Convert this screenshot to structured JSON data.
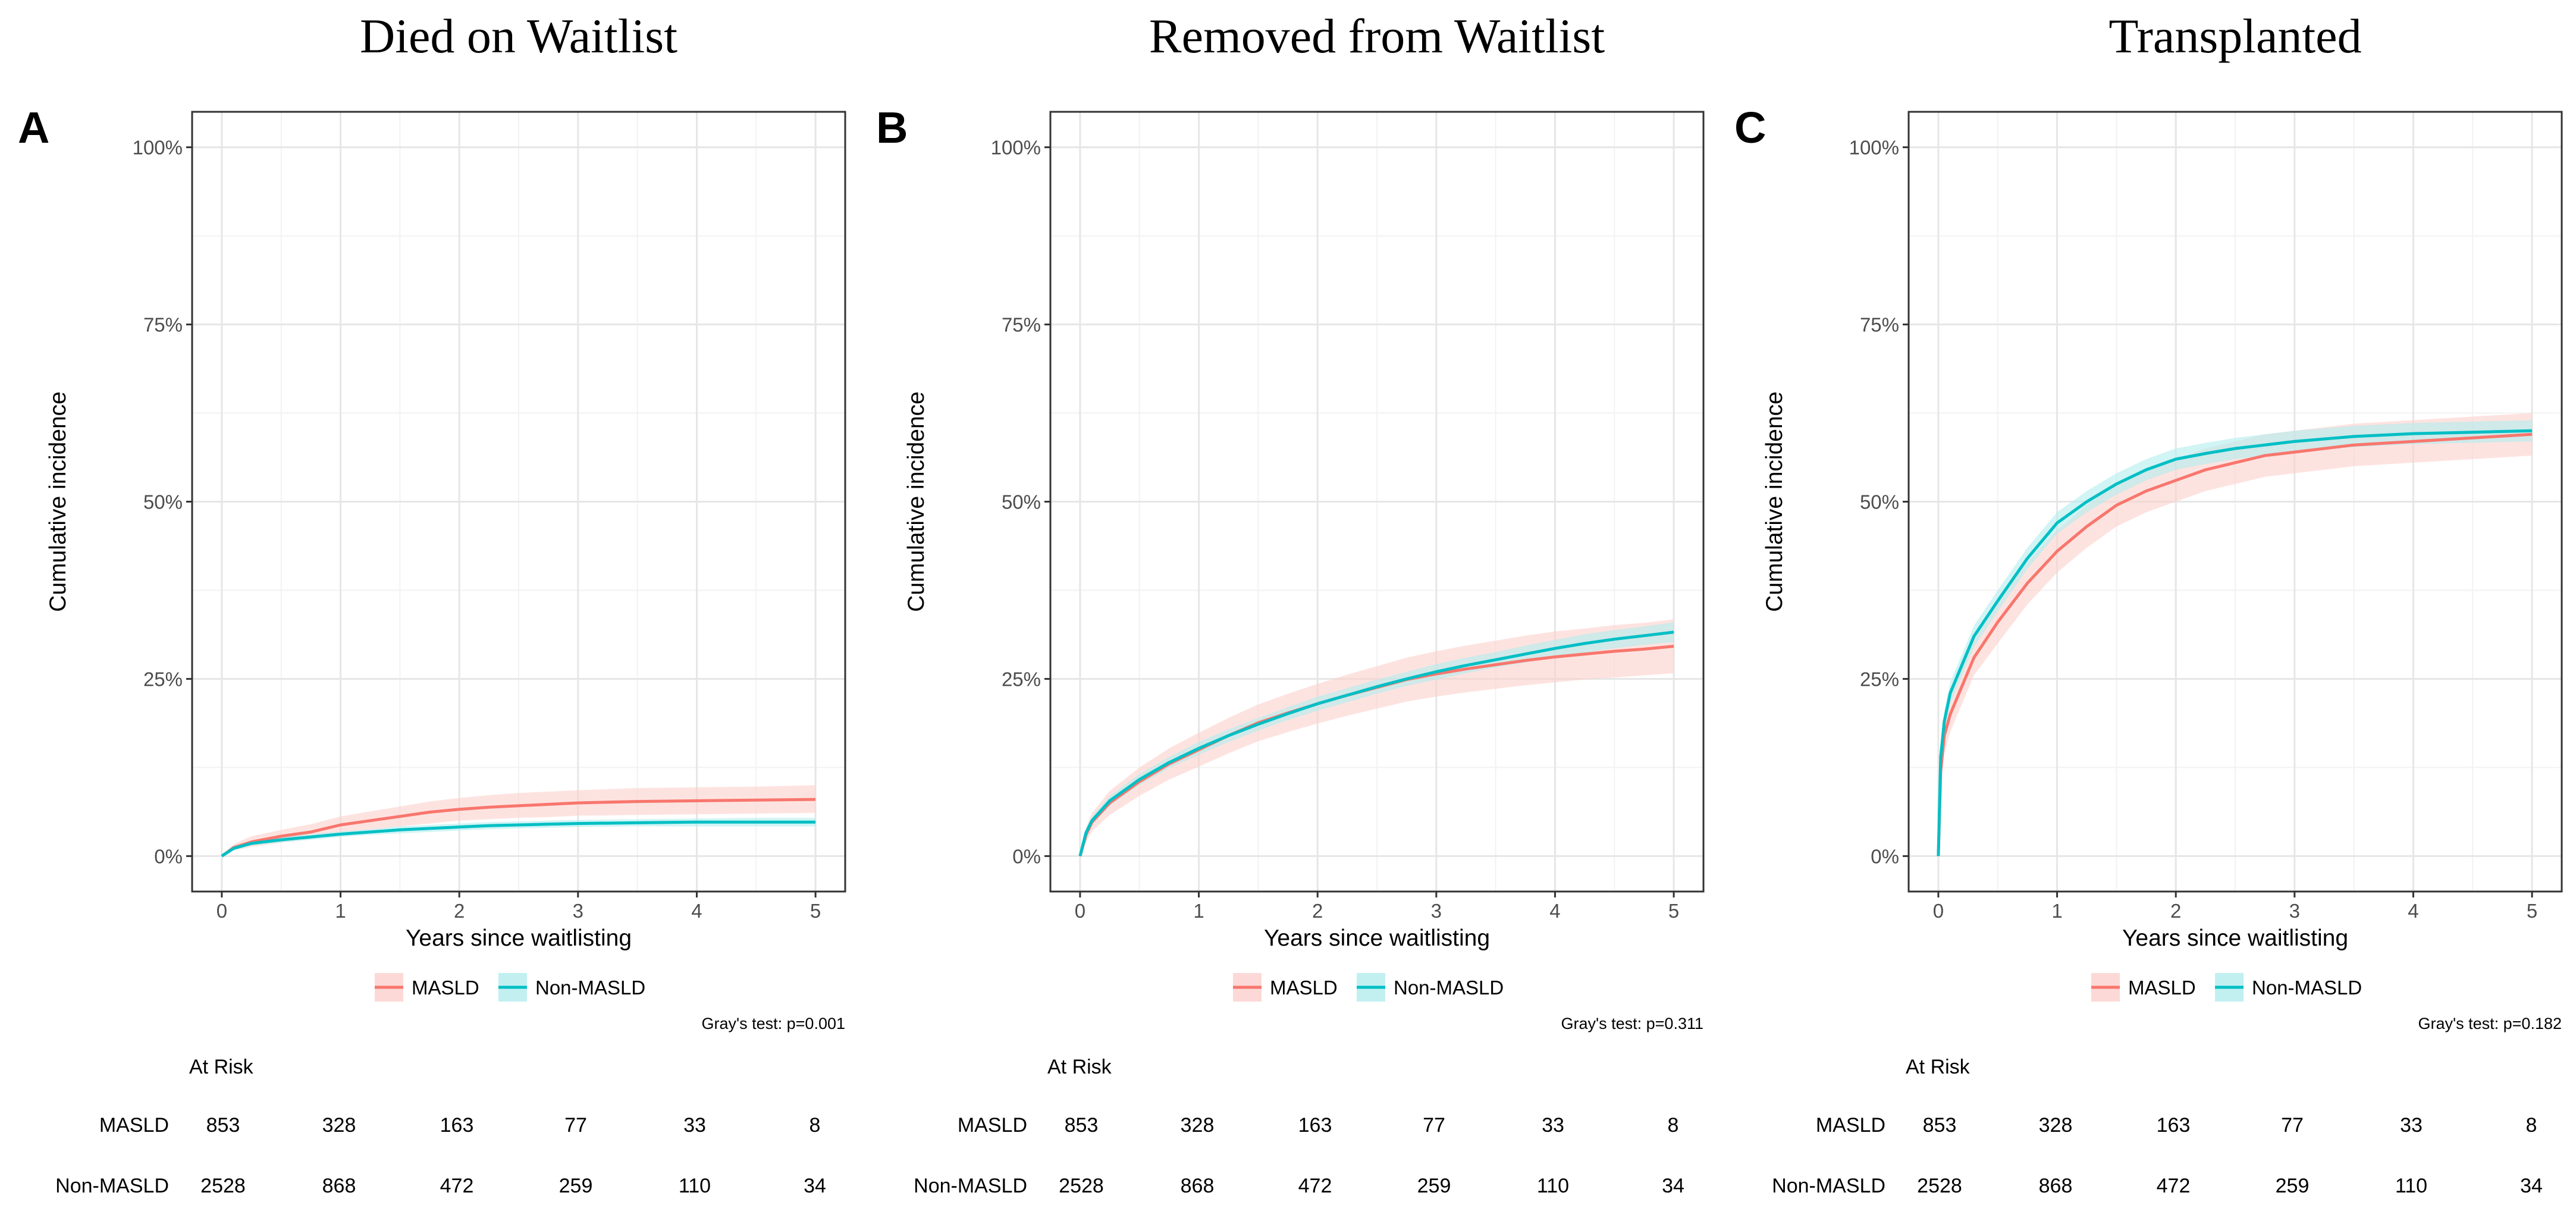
{
  "chart_data": [
    {
      "type": "line",
      "letter": "A",
      "title": "Died on Waitlist",
      "xlabel": "Years since waitlisting",
      "ylabel": "Cumulative incidence",
      "xlim": [
        0,
        5
      ],
      "ylim": [
        0,
        100
      ],
      "x_ticks": [
        0,
        1,
        2,
        3,
        4,
        5
      ],
      "y_ticks": [
        "0%",
        "25%",
        "50%",
        "75%",
        "100%"
      ],
      "grid": true,
      "legend": "bottom",
      "series": [
        {
          "name": "MASLD",
          "color": "#F8766D",
          "band_color": "#FBD0CC",
          "x": [
            0,
            0.1,
            0.25,
            0.5,
            0.75,
            1,
            1.25,
            1.5,
            1.75,
            2,
            2.25,
            2.5,
            2.75,
            3,
            3.5,
            4,
            4.5,
            5
          ],
          "y": [
            0,
            1.2,
            2.0,
            2.8,
            3.4,
            4.4,
            5.0,
            5.6,
            6.2,
            6.6,
            6.9,
            7.1,
            7.3,
            7.5,
            7.7,
            7.8,
            7.9,
            8.0
          ],
          "ci_lower": [
            0,
            0.8,
            1.3,
            1.9,
            2.4,
            3.2,
            3.7,
            4.2,
            4.6,
            5.0,
            5.2,
            5.4,
            5.5,
            5.7,
            5.8,
            5.9,
            6.0,
            6.1
          ],
          "ci_upper": [
            0,
            1.7,
            2.8,
            3.7,
            4.5,
            5.6,
            6.3,
            7.0,
            7.7,
            8.2,
            8.6,
            8.9,
            9.1,
            9.3,
            9.6,
            9.7,
            9.8,
            10.0
          ]
        },
        {
          "name": "Non-MASLD",
          "color": "#00BFC4",
          "band_color": "#B3ECEE",
          "x": [
            0,
            0.1,
            0.25,
            0.5,
            0.75,
            1,
            1.25,
            1.5,
            1.75,
            2,
            2.25,
            2.5,
            2.75,
            3,
            3.5,
            4,
            4.5,
            5
          ],
          "y": [
            0,
            1.1,
            1.8,
            2.3,
            2.7,
            3.1,
            3.4,
            3.7,
            3.9,
            4.1,
            4.3,
            4.4,
            4.5,
            4.6,
            4.7,
            4.8,
            4.8,
            4.8
          ],
          "ci_lower": [
            0,
            0.8,
            1.5,
            1.9,
            2.3,
            2.7,
            3.0,
            3.2,
            3.4,
            3.6,
            3.8,
            3.9,
            4.0,
            4.1,
            4.2,
            4.2,
            4.2,
            4.2
          ],
          "ci_upper": [
            0,
            1.4,
            2.1,
            2.7,
            3.1,
            3.5,
            3.8,
            4.2,
            4.4,
            4.6,
            4.8,
            4.9,
            5.0,
            5.1,
            5.2,
            5.3,
            5.4,
            5.4
          ]
        }
      ],
      "test": "Gray's test: p=0.001",
      "risk_title": "At Risk",
      "risk_rows": [
        {
          "label": "MASLD",
          "values": [
            "853",
            "328",
            "163",
            "77",
            "33",
            "8"
          ]
        },
        {
          "label": "Non-MASLD",
          "values": [
            "2528",
            "868",
            "472",
            "259",
            "110",
            "34"
          ]
        }
      ]
    },
    {
      "type": "line",
      "letter": "B",
      "title": "Removed from Waitlist",
      "xlabel": "Years since waitlisting",
      "ylabel": "Cumulative incidence",
      "xlim": [
        0,
        5
      ],
      "ylim": [
        0,
        100
      ],
      "x_ticks": [
        0,
        1,
        2,
        3,
        4,
        5
      ],
      "y_ticks": [
        "0%",
        "25%",
        "50%",
        "75%",
        "100%"
      ],
      "grid": true,
      "legend": "bottom",
      "series": [
        {
          "name": "MASLD",
          "color": "#F8766D",
          "band_color": "#FBD0CC",
          "x": [
            0,
            0.05,
            0.1,
            0.25,
            0.5,
            0.75,
            1,
            1.25,
            1.5,
            1.75,
            2,
            2.25,
            2.5,
            2.75,
            3,
            3.25,
            3.5,
            3.75,
            4,
            4.25,
            4.5,
            4.75,
            5
          ],
          "y": [
            0,
            3.0,
            4.8,
            7.5,
            10.5,
            13.0,
            15.0,
            17.0,
            18.8,
            20.2,
            21.5,
            22.7,
            23.8,
            24.9,
            25.7,
            26.4,
            27.0,
            27.6,
            28.1,
            28.5,
            28.9,
            29.2,
            29.6
          ],
          "ci_lower": [
            0,
            2.0,
            3.5,
            5.8,
            8.5,
            10.8,
            12.6,
            14.5,
            16.2,
            17.5,
            18.7,
            19.8,
            20.8,
            21.8,
            22.5,
            23.1,
            23.6,
            24.1,
            24.5,
            24.9,
            25.2,
            25.5,
            25.8
          ],
          "ci_upper": [
            0,
            4.0,
            6.1,
            9.2,
            12.5,
            15.2,
            17.4,
            19.5,
            21.4,
            22.9,
            24.3,
            25.6,
            26.8,
            28.0,
            28.9,
            29.7,
            30.4,
            31.1,
            31.7,
            32.1,
            32.6,
            32.9,
            33.4
          ]
        },
        {
          "name": "Non-MASLD",
          "color": "#00BFC4",
          "band_color": "#B3ECEE",
          "x": [
            0,
            0.05,
            0.1,
            0.25,
            0.5,
            0.75,
            1,
            1.25,
            1.5,
            1.75,
            2,
            2.25,
            2.5,
            2.75,
            3,
            3.25,
            3.5,
            3.75,
            4,
            4.25,
            4.5,
            4.75,
            5
          ],
          "y": [
            0,
            3.3,
            5.0,
            7.8,
            10.8,
            13.2,
            15.2,
            17.0,
            18.6,
            20.1,
            21.5,
            22.7,
            23.9,
            25.0,
            26.0,
            26.9,
            27.7,
            28.5,
            29.3,
            30.0,
            30.6,
            31.1,
            31.6
          ],
          "ci_lower": [
            0,
            2.8,
            4.4,
            7.1,
            10.0,
            12.4,
            14.3,
            16.1,
            17.7,
            19.2,
            20.5,
            21.7,
            22.9,
            24.0,
            24.9,
            25.8,
            26.6,
            27.3,
            28.1,
            28.7,
            29.3,
            29.8,
            30.2
          ],
          "ci_upper": [
            0,
            3.8,
            5.6,
            8.5,
            11.6,
            14.0,
            16.1,
            17.9,
            19.5,
            21.0,
            22.5,
            23.7,
            24.9,
            26.0,
            27.1,
            28.0,
            28.8,
            29.7,
            30.5,
            31.3,
            31.9,
            32.4,
            33.0
          ]
        }
      ],
      "test": "Gray's test: p=0.311",
      "risk_title": "At Risk",
      "risk_rows": [
        {
          "label": "MASLD",
          "values": [
            "853",
            "328",
            "163",
            "77",
            "33",
            "8"
          ]
        },
        {
          "label": "Non-MASLD",
          "values": [
            "2528",
            "868",
            "472",
            "259",
            "110",
            "34"
          ]
        }
      ]
    },
    {
      "type": "line",
      "letter": "C",
      "title": "Transplanted",
      "xlabel": "Years since waitlisting",
      "ylabel": "Cumulative incidence",
      "xlim": [
        0,
        5
      ],
      "ylim": [
        0,
        100
      ],
      "x_ticks": [
        0,
        1,
        2,
        3,
        4,
        5
      ],
      "y_ticks": [
        "0%",
        "25%",
        "50%",
        "75%",
        "100%"
      ],
      "grid": true,
      "legend": "bottom",
      "series": [
        {
          "name": "MASLD",
          "color": "#F8766D",
          "band_color": "#FBD0CC",
          "x": [
            0,
            0.02,
            0.05,
            0.1,
            0.2,
            0.3,
            0.5,
            0.75,
            1,
            1.25,
            1.5,
            1.75,
            2,
            2.25,
            2.5,
            2.75,
            3,
            3.5,
            4,
            4.5,
            5
          ],
          "y": [
            0,
            12,
            17,
            20,
            24,
            28,
            33,
            38.5,
            43,
            46.5,
            49.5,
            51.5,
            53,
            54.5,
            55.5,
            56.5,
            57,
            58,
            58.5,
            59,
            59.5
          ],
          "ci_lower": [
            0,
            10,
            14.5,
            17.5,
            21.5,
            25.5,
            30,
            35.5,
            40,
            43.5,
            46.5,
            48.5,
            50,
            51.5,
            52.5,
            53.5,
            54,
            55,
            55.5,
            56,
            56.5
          ],
          "ci_upper": [
            0,
            14,
            19.5,
            22.5,
            26.5,
            30.5,
            36,
            41.5,
            46,
            49.5,
            52.5,
            54.5,
            56,
            57.5,
            58.5,
            59.5,
            60,
            61,
            61.5,
            62,
            62.5
          ]
        },
        {
          "name": "Non-MASLD",
          "color": "#00BFC4",
          "band_color": "#B3ECEE",
          "x": [
            0,
            0.02,
            0.05,
            0.1,
            0.2,
            0.3,
            0.5,
            0.75,
            1,
            1.25,
            1.5,
            1.75,
            2,
            2.25,
            2.5,
            2.75,
            3,
            3.5,
            4,
            4.5,
            5
          ],
          "y": [
            0,
            14,
            19,
            23,
            27,
            31,
            36,
            42,
            47,
            50,
            52.5,
            54.5,
            56,
            56.8,
            57.5,
            58,
            58.5,
            59.2,
            59.6,
            59.8,
            60
          ],
          "ci_lower": [
            0,
            12.5,
            17.5,
            21.5,
            25.5,
            29.5,
            34.5,
            40.5,
            45.5,
            48.5,
            51,
            53,
            54.5,
            55.3,
            56,
            56.5,
            57,
            57.7,
            58.1,
            58.3,
            58.5
          ],
          "ci_upper": [
            0,
            15.5,
            20.5,
            24.5,
            28.5,
            32.5,
            37.5,
            43.5,
            48.5,
            51.5,
            54,
            56,
            57.5,
            58.3,
            59,
            59.5,
            60,
            60.7,
            61.1,
            61.3,
            61.5
          ]
        }
      ],
      "test": "Gray's test: p=0.182",
      "risk_title": "At Risk",
      "risk_rows": [
        {
          "label": "MASLD",
          "values": [
            "853",
            "328",
            "163",
            "77",
            "33",
            "8"
          ]
        },
        {
          "label": "Non-MASLD",
          "values": [
            "2528",
            "868",
            "472",
            "259",
            "110",
            "34"
          ]
        }
      ]
    }
  ]
}
